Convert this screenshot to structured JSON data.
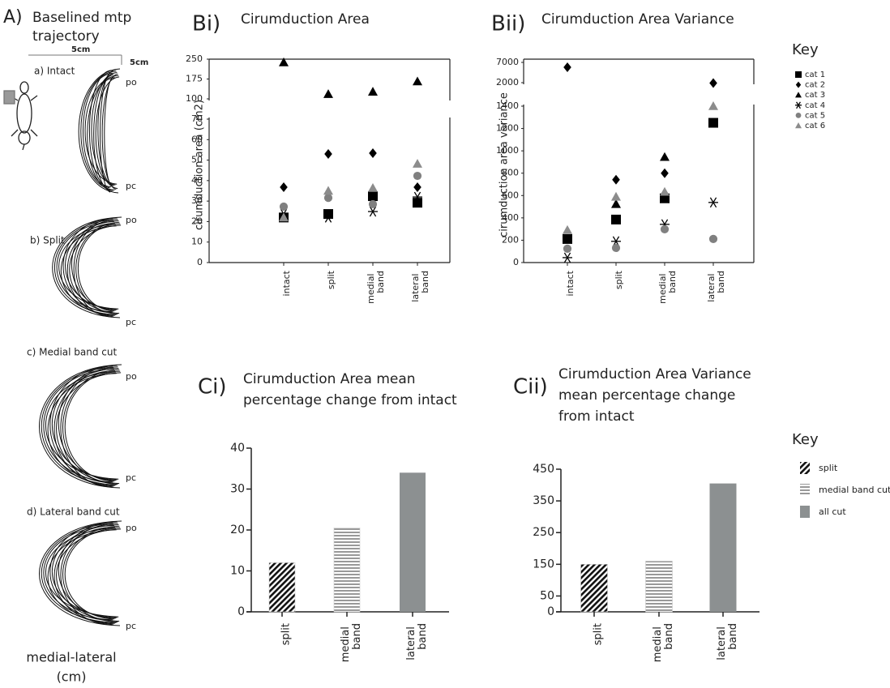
{
  "panel_a": {
    "label": "A)",
    "title": [
      "Baselined mtp",
      "trajectory"
    ],
    "scale_x": "5cm",
    "scale_y": "5cm",
    "panels": [
      {
        "label": "a) Intact",
        "top": "po",
        "bottom": "pc"
      },
      {
        "label": "b) Split",
        "top": "po",
        "bottom": "pc"
      },
      {
        "label": "c) Medial band cut",
        "top": "po",
        "bottom": "pc"
      },
      {
        "label": "d) Lateral band cut",
        "top": "po",
        "bottom": "pc"
      }
    ],
    "x_axis_label": [
      "medial-lateral",
      "(cm)"
    ]
  },
  "chart_data": [
    {
      "type": "scatter",
      "panel": "Bi)",
      "title": "Cirumduction Area",
      "y_label": "cirumduction area (cm2)",
      "categories": [
        "intact",
        "split",
        "medial band",
        "lateral band"
      ],
      "ylim": [
        0,
        250
      ],
      "y_break": [
        70,
        100
      ],
      "yticks": [
        0,
        10,
        20,
        30,
        40,
        50,
        60,
        70,
        100,
        175,
        250
      ],
      "series": [
        {
          "name": "cat 1",
          "color": "#000000",
          "marker": "square",
          "values": [
            22,
            23.7,
            32.4,
            29.2
          ]
        },
        {
          "name": "cat 2",
          "color": "#000000",
          "marker": "diamond",
          "values": [
            36.8,
            53,
            53.4,
            36.8
          ]
        },
        {
          "name": "cat 3",
          "color": "#000000",
          "marker": "triangle",
          "values": [
            238,
            118,
            127,
            166
          ]
        },
        {
          "name": "cat 4",
          "color": "#000000",
          "marker": "asterisk",
          "values": [
            23.7,
            22,
            24.9,
            32
          ]
        },
        {
          "name": "cat 5",
          "color": "#808080",
          "marker": "circle",
          "values": [
            27.3,
            31.6,
            28.5,
            42.3
          ]
        },
        {
          "name": "cat 6",
          "color": "#8c8c8c",
          "marker": "triangle",
          "values": [
            22,
            35,
            36.4,
            48.2
          ]
        }
      ]
    },
    {
      "type": "scatter",
      "panel": "Bii)",
      "title": "Cirumduction Area Variance",
      "y_label": "cirumduction area variance",
      "categories": [
        "intact",
        "split",
        "medial band",
        "lateral band"
      ],
      "ylim": [
        0,
        7000
      ],
      "y_break": [
        1400,
        2000
      ],
      "yticks": [
        0,
        200,
        400,
        600,
        800,
        1000,
        1200,
        1400,
        2000,
        7000
      ],
      "series": [
        {
          "name": "cat 1",
          "color": "#000000",
          "marker": "square",
          "values": [
            211,
            385,
            575,
            1251
          ]
        },
        {
          "name": "cat 2",
          "color": "#000000",
          "marker": "diamond",
          "values": [
            5800,
            742,
            800,
            1900
          ]
        },
        {
          "name": "cat 3",
          "color": "#000000",
          "marker": "triangle",
          "values": [
            null,
            524,
            945,
            null
          ]
        },
        {
          "name": "cat 4",
          "color": "#000000",
          "marker": "asterisk",
          "values": [
            44,
            190,
            342,
            538
          ]
        },
        {
          "name": "cat 5",
          "color": "#808080",
          "marker": "circle",
          "values": [
            124,
            131,
            298,
            211
          ]
        },
        {
          "name": "cat 6",
          "color": "#8c8c8c",
          "marker": "triangle",
          "values": [
            291,
            589,
            633,
            1400
          ]
        }
      ]
    },
    {
      "type": "bar",
      "panel": "Ci)",
      "title": [
        "Cirumduction Area mean",
        "percentage change from intact"
      ],
      "categories": [
        "split",
        "medial band",
        "lateral band"
      ],
      "values": [
        12,
        20.5,
        34
      ],
      "fills": [
        "hatch",
        "stripes",
        "solid"
      ],
      "color": "#8c9091",
      "ylim": [
        0,
        40
      ],
      "yticks": [
        0,
        10,
        20,
        30,
        40
      ]
    },
    {
      "type": "bar",
      "panel": "Cii)",
      "title": [
        "Cirumduction Area Variance",
        "mean percentage change",
        "from intact"
      ],
      "categories": [
        "split",
        "medial band",
        "lateral band"
      ],
      "values": [
        150,
        160,
        405
      ],
      "fills": [
        "hatch",
        "stripes",
        "solid"
      ],
      "color": "#8c9091",
      "ylim": [
        0,
        450
      ],
      "yticks": [
        0,
        50,
        150,
        250,
        350,
        450
      ]
    }
  ],
  "scatter_key": {
    "title": "Key"
  },
  "bar_key": {
    "title": "Key",
    "entries": [
      "split",
      "medial band cut",
      "all cut"
    ],
    "fills": [
      "hatch",
      "stripes",
      "solid"
    ]
  }
}
